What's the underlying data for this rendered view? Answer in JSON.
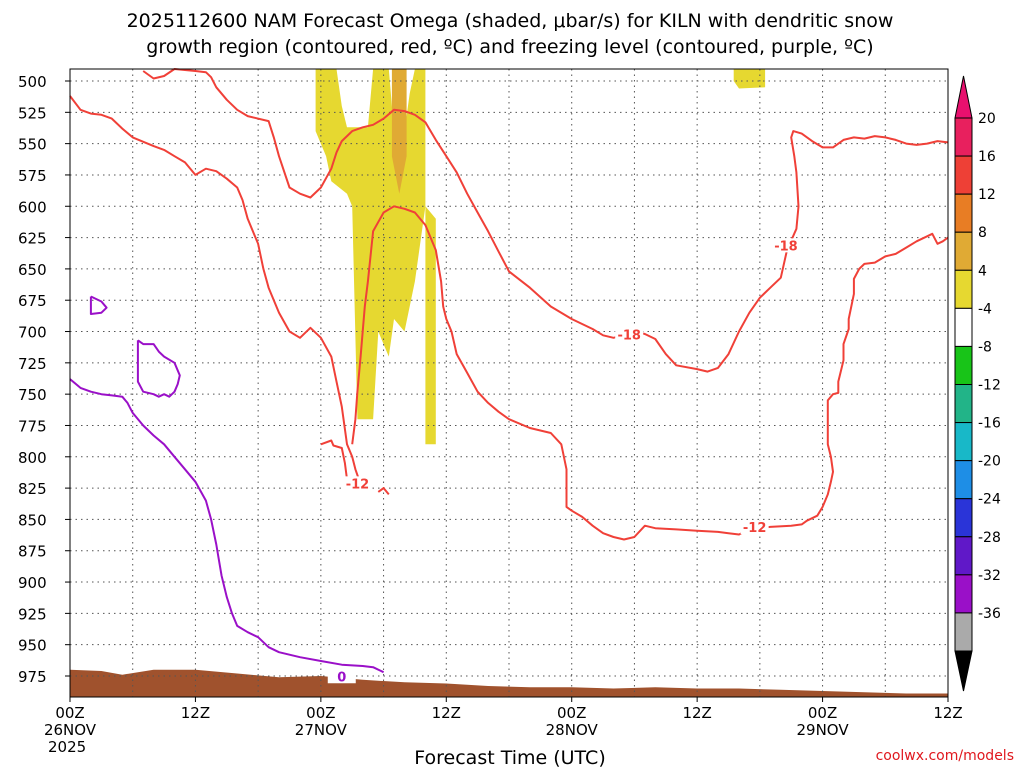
{
  "chart_data": {
    "type": "contour",
    "title_line1": "2025112600 NAM Forecast Omega (shaded, μbar/s) for KILN with dendritic snow",
    "title_line2": "growth region (contoured, red, ºC) and freezing level (contoured, purple, ºC)",
    "xlabel": "Forecast Time (UTC)",
    "ylabel_ticks": [
      "500",
      "525",
      "550",
      "575",
      "600",
      "625",
      "650",
      "675",
      "700",
      "725",
      "750",
      "775",
      "800",
      "825",
      "850",
      "875",
      "900",
      "925",
      "950",
      "975"
    ],
    "ylabel_values": [
      500,
      525,
      550,
      575,
      600,
      625,
      650,
      675,
      700,
      725,
      750,
      775,
      800,
      825,
      850,
      875,
      900,
      925,
      950,
      975
    ],
    "x_ticks": [
      {
        "hour": 0,
        "label": "00Z",
        "sub": "26NOV",
        "sub2": "2025"
      },
      {
        "hour": 12,
        "label": "12Z",
        "sub": "",
        "sub2": ""
      },
      {
        "hour": 24,
        "label": "00Z",
        "sub": "27NOV",
        "sub2": ""
      },
      {
        "hour": 36,
        "label": "12Z",
        "sub": "",
        "sub2": ""
      },
      {
        "hour": 48,
        "label": "00Z",
        "sub": "28NOV",
        "sub2": ""
      },
      {
        "hour": 60,
        "label": "12Z",
        "sub": "",
        "sub2": ""
      },
      {
        "hour": 72,
        "label": "00Z",
        "sub": "29NOV",
        "sub2": ""
      },
      {
        "hour": 84,
        "label": "12Z",
        "sub": "",
        "sub2": ""
      }
    ],
    "xlim": [
      0,
      84
    ],
    "ylim": [
      500,
      990
    ],
    "colorbar": {
      "labels": [
        "20",
        "16",
        "12",
        "8",
        "4",
        "-4",
        "-8",
        "-12",
        "-16",
        "-20",
        "-24",
        "-28",
        "-32",
        "-36"
      ],
      "colors": [
        "#e8205e",
        "#ee4036",
        "#e87d24",
        "#e0aa34",
        "#e6d830",
        "#ffffff",
        "#18c418",
        "#22b488",
        "#18b8c8",
        "#1e8ee6",
        "#2a34d8",
        "#6018c8",
        "#9a10c8",
        "#aaaaaa"
      ],
      "top_color": "#e8106e",
      "bottom_color": "#000000"
    },
    "contour_labels": [
      {
        "text": "-18",
        "hour": 53.5,
        "p": 703
      },
      {
        "text": "-18",
        "hour": 68.5,
        "p": 632
      },
      {
        "text": "-12",
        "hour": 27.5,
        "p": 822
      },
      {
        "text": "-12",
        "hour": 65.5,
        "p": 857
      },
      {
        "text": "0",
        "hour": 26.0,
        "p": 976
      }
    ],
    "red_contours": [
      [
        [
          0,
          512
        ],
        [
          1,
          523
        ],
        [
          2,
          526
        ],
        [
          3,
          527
        ],
        [
          4,
          530
        ],
        [
          5,
          538
        ],
        [
          6,
          545
        ],
        [
          8,
          552
        ],
        [
          9,
          555
        ],
        [
          10,
          560
        ],
        [
          11,
          565
        ],
        [
          12,
          575
        ],
        [
          13,
          570
        ],
        [
          14,
          572
        ],
        [
          15,
          578
        ],
        [
          16,
          585
        ],
        [
          16.5,
          595
        ],
        [
          17,
          610
        ],
        [
          18,
          630
        ],
        [
          18.5,
          650
        ],
        [
          19,
          665
        ],
        [
          20,
          685
        ],
        [
          21,
          700
        ],
        [
          22,
          705
        ],
        [
          23,
          697
        ],
        [
          24,
          705
        ],
        [
          25,
          720
        ],
        [
          25.5,
          740
        ],
        [
          26,
          760
        ],
        [
          26.5,
          790
        ],
        [
          27,
          800
        ],
        [
          27.3,
          810
        ],
        [
          27.8,
          822
        ]
      ],
      [
        [
          7,
          492
        ],
        [
          8,
          498
        ],
        [
          9,
          496
        ],
        [
          10,
          490
        ],
        [
          12,
          492
        ],
        [
          13,
          493
        ],
        [
          13.5,
          497
        ],
        [
          14,
          505
        ],
        [
          15,
          515
        ],
        [
          16,
          523
        ],
        [
          17,
          528
        ],
        [
          19,
          532
        ],
        [
          19.5,
          545
        ],
        [
          20,
          560
        ],
        [
          21,
          585
        ],
        [
          22,
          590
        ],
        [
          23,
          593
        ],
        [
          24,
          585
        ],
        [
          25,
          570
        ],
        [
          25.5,
          557
        ],
        [
          26,
          548
        ],
        [
          27,
          540
        ],
        [
          28,
          537
        ],
        [
          29,
          535
        ],
        [
          30,
          530
        ],
        [
          31,
          523
        ],
        [
          32,
          524
        ],
        [
          33,
          527
        ],
        [
          34,
          533
        ],
        [
          35,
          547
        ],
        [
          36,
          560
        ],
        [
          37,
          573
        ],
        [
          38,
          590
        ],
        [
          39,
          605
        ],
        [
          40,
          620
        ],
        [
          41,
          636
        ],
        [
          42,
          652
        ],
        [
          44,
          665
        ],
        [
          46,
          680
        ],
        [
          48,
          690
        ],
        [
          50,
          698
        ],
        [
          51,
          703
        ],
        [
          52,
          705
        ],
        [
          53,
          703
        ],
        [
          54,
          700
        ],
        [
          55,
          702
        ],
        [
          56,
          706
        ],
        [
          57,
          718
        ],
        [
          58,
          727
        ],
        [
          60,
          730
        ],
        [
          61,
          732
        ],
        [
          62,
          729
        ],
        [
          63,
          718
        ],
        [
          64,
          700
        ],
        [
          65,
          685
        ],
        [
          66,
          673
        ],
        [
          67,
          665
        ],
        [
          68,
          657
        ],
        [
          68.6,
          635
        ],
        [
          69.5,
          618
        ],
        [
          69.7,
          600
        ],
        [
          69.5,
          573
        ],
        [
          69.3,
          560
        ],
        [
          69,
          545
        ],
        [
          69.2,
          540
        ],
        [
          70,
          542
        ],
        [
          71,
          548
        ],
        [
          72,
          553
        ],
        [
          73,
          553
        ],
        [
          74,
          547
        ],
        [
          75,
          545
        ],
        [
          76,
          546
        ],
        [
          77,
          544
        ],
        [
          78,
          545
        ],
        [
          79,
          547
        ],
        [
          80,
          550
        ],
        [
          81,
          551
        ],
        [
          82,
          550
        ],
        [
          83,
          548
        ],
        [
          84,
          549
        ]
      ],
      [
        [
          24,
          790
        ],
        [
          25,
          787
        ],
        [
          25.2,
          791
        ],
        [
          26,
          793
        ],
        [
          26.3,
          805
        ],
        [
          26.5,
          818
        ],
        [
          26.8,
          820
        ]
      ],
      [
        [
          27,
          790
        ],
        [
          27.3,
          770
        ],
        [
          27.5,
          748
        ],
        [
          27.8,
          720
        ],
        [
          28,
          700
        ],
        [
          28.2,
          680
        ],
        [
          28.5,
          660
        ],
        [
          29,
          620
        ],
        [
          30,
          605
        ],
        [
          31,
          600
        ],
        [
          32,
          602
        ],
        [
          33,
          605
        ],
        [
          34,
          615
        ],
        [
          35,
          635
        ],
        [
          35.5,
          660
        ],
        [
          35.7,
          680
        ],
        [
          36,
          690
        ],
        [
          36.5,
          700
        ],
        [
          37,
          718
        ],
        [
          38,
          733
        ],
        [
          39,
          748
        ],
        [
          40,
          757
        ],
        [
          41,
          764
        ],
        [
          42,
          770
        ],
        [
          44,
          777
        ],
        [
          46,
          781
        ],
        [
          47,
          790
        ],
        [
          47.5,
          810
        ],
        [
          47.5,
          830
        ],
        [
          47.5,
          840
        ],
        [
          48,
          843
        ],
        [
          49,
          848
        ],
        [
          50,
          855
        ],
        [
          51,
          861
        ],
        [
          52,
          864
        ],
        [
          53,
          866
        ],
        [
          54,
          864
        ],
        [
          55,
          855
        ],
        [
          56,
          857
        ],
        [
          58,
          858
        ],
        [
          60,
          859
        ],
        [
          62,
          860
        ],
        [
          63,
          861
        ],
        [
          64,
          862
        ],
        [
          65,
          858
        ],
        [
          67,
          856
        ],
        [
          69,
          855
        ],
        [
          70,
          854
        ],
        [
          70.5,
          851
        ],
        [
          71.5,
          847
        ],
        [
          72,
          840
        ],
        [
          72.5,
          830
        ],
        [
          72.8,
          820
        ],
        [
          73,
          812
        ],
        [
          72.8,
          800
        ],
        [
          72.5,
          790
        ],
        [
          72.5,
          770
        ],
        [
          72.5,
          755
        ],
        [
          73,
          750
        ],
        [
          73.5,
          749
        ],
        [
          73.5,
          740
        ],
        [
          74,
          723
        ],
        [
          74,
          710
        ],
        [
          74.5,
          698
        ],
        [
          74.5,
          690
        ],
        [
          75,
          670
        ],
        [
          75,
          658
        ],
        [
          75.5,
          650
        ],
        [
          76,
          646
        ],
        [
          77,
          645
        ],
        [
          78,
          640
        ],
        [
          79,
          638
        ],
        [
          80,
          633
        ],
        [
          81,
          628
        ],
        [
          82,
          624
        ],
        [
          82.5,
          622
        ],
        [
          83,
          630
        ],
        [
          83.5,
          628
        ],
        [
          84,
          625
        ]
      ],
      [
        [
          29.5,
          828
        ],
        [
          30,
          825
        ],
        [
          30.5,
          830
        ]
      ]
    ],
    "purple_contours": [
      [
        [
          0,
          738
        ],
        [
          1,
          745
        ],
        [
          2,
          748
        ],
        [
          3,
          750
        ],
        [
          4,
          751
        ],
        [
          5,
          752
        ],
        [
          5.5,
          757
        ],
        [
          6,
          765
        ],
        [
          7,
          775
        ],
        [
          8,
          783
        ],
        [
          9,
          790
        ],
        [
          10,
          800
        ],
        [
          11,
          810
        ],
        [
          12,
          820
        ],
        [
          13,
          835
        ],
        [
          13.5,
          850
        ],
        [
          14,
          870
        ],
        [
          14.2,
          880
        ],
        [
          14.5,
          895
        ],
        [
          15,
          912
        ],
        [
          15.5,
          925
        ],
        [
          16,
          935
        ],
        [
          17,
          940
        ],
        [
          18,
          944
        ],
        [
          19,
          952
        ],
        [
          20,
          956
        ],
        [
          22,
          960
        ],
        [
          24,
          963
        ],
        [
          26,
          966
        ],
        [
          28,
          967
        ],
        [
          29,
          968
        ],
        [
          30,
          972
        ]
      ],
      [
        [
          2,
          672
        ],
        [
          3,
          676
        ],
        [
          3.5,
          681
        ],
        [
          3,
          685
        ],
        [
          2,
          686
        ],
        [
          2,
          682
        ],
        [
          2,
          672
        ]
      ],
      [
        [
          6.5,
          707
        ],
        [
          7,
          710
        ],
        [
          8,
          710
        ],
        [
          8.5,
          716
        ],
        [
          9,
          720
        ],
        [
          10,
          725
        ],
        [
          10.5,
          735
        ],
        [
          10.3,
          742
        ],
        [
          10,
          748
        ],
        [
          9.5,
          752
        ],
        [
          9,
          750
        ],
        [
          8.5,
          752
        ],
        [
          8,
          750
        ],
        [
          7,
          748
        ],
        [
          6.5,
          740
        ],
        [
          6.5,
          725
        ],
        [
          6.5,
          707
        ]
      ]
    ],
    "omega_regions": [
      {
        "level": "4-8",
        "points": [
          [
            23.5,
            490
          ],
          [
            25.5,
            490
          ],
          [
            26,
            520
          ],
          [
            26.5,
            537
          ],
          [
            28.5,
            537
          ],
          [
            29,
            490
          ],
          [
            30.5,
            490
          ],
          [
            31,
            540
          ],
          [
            31.5,
            560
          ],
          [
            32,
            540
          ],
          [
            32.5,
            510
          ],
          [
            33,
            490
          ],
          [
            34,
            490
          ],
          [
            34,
            600
          ],
          [
            35,
            610
          ],
          [
            35,
            790
          ],
          [
            34,
            790
          ],
          [
            34,
            600
          ],
          [
            33,
            660
          ],
          [
            32,
            700
          ],
          [
            31,
            690
          ],
          [
            30.5,
            720
          ],
          [
            29.5,
            700
          ],
          [
            29,
            770
          ],
          [
            27.5,
            770
          ],
          [
            27,
            600
          ],
          [
            26.5,
            590
          ],
          [
            25,
            580
          ],
          [
            24.5,
            560
          ],
          [
            23.5,
            540
          ]
        ]
      },
      {
        "level": "4-8",
        "points": [
          [
            63.5,
            490
          ],
          [
            66.5,
            490
          ],
          [
            66.5,
            505
          ],
          [
            64,
            506
          ],
          [
            63.5,
            500
          ]
        ]
      },
      {
        "level": "8-12",
        "points": [
          [
            30.8,
            490
          ],
          [
            32.2,
            490
          ],
          [
            32.2,
            560
          ],
          [
            31.5,
            590
          ],
          [
            30.8,
            560
          ]
        ]
      }
    ],
    "terrain": {
      "color": "#a0522d",
      "top_p": [
        [
          0,
          970
        ],
        [
          3,
          971
        ],
        [
          5,
          974
        ],
        [
          8,
          970
        ],
        [
          12,
          970
        ],
        [
          16,
          973
        ],
        [
          20,
          976
        ],
        [
          24,
          975
        ],
        [
          28,
          978
        ],
        [
          32,
          980
        ],
        [
          36,
          981
        ],
        [
          40,
          983
        ],
        [
          44,
          984
        ],
        [
          48,
          984
        ],
        [
          52,
          985
        ],
        [
          56,
          984
        ],
        [
          60,
          985
        ],
        [
          64,
          985
        ],
        [
          68,
          986
        ],
        [
          72,
          987
        ],
        [
          76,
          988
        ],
        [
          80,
          989
        ],
        [
          84,
          989
        ]
      ]
    }
  },
  "credit": "coolwx.com/models"
}
